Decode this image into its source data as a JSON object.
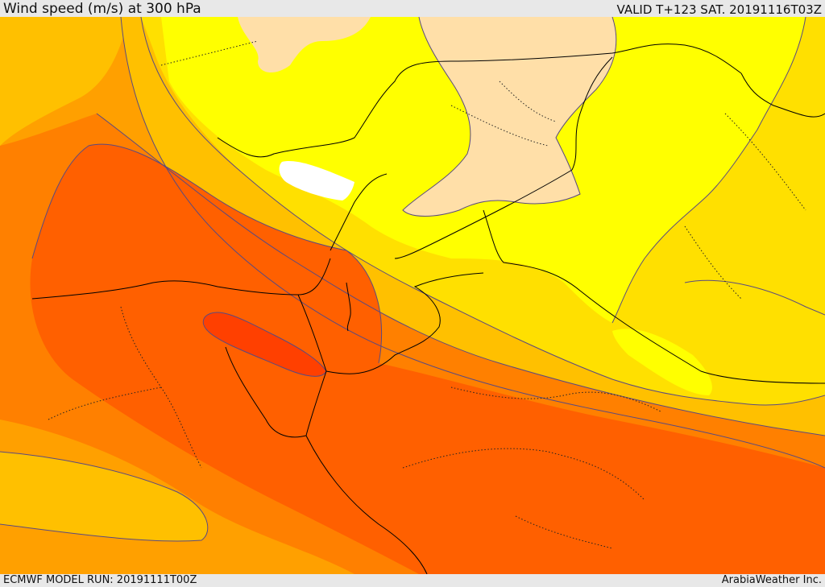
{
  "header": {
    "title": "Wind speed (m/s) at 300 hPa",
    "valid": "VALID T+123 SAT. 20191116T03Z"
  },
  "footer": {
    "model_run": "ECMWF MODEL RUN: 20191111T00Z",
    "credit": "ArabiaWeather Inc."
  },
  "map": {
    "variable": "wind speed",
    "units": "m/s",
    "level": "300 hPa",
    "colors": {
      "band_1": "#ffffff",
      "band_2": "#ffdfa8",
      "band_3": "#ffff00",
      "band_4": "#ffe000",
      "band_5": "#ffc000",
      "band_6": "#ffa000",
      "band_7": "#ff8000",
      "band_8": "#ff6000",
      "band_9": "#ff4000",
      "contour": "#5a4a80",
      "border": "#000000"
    }
  }
}
